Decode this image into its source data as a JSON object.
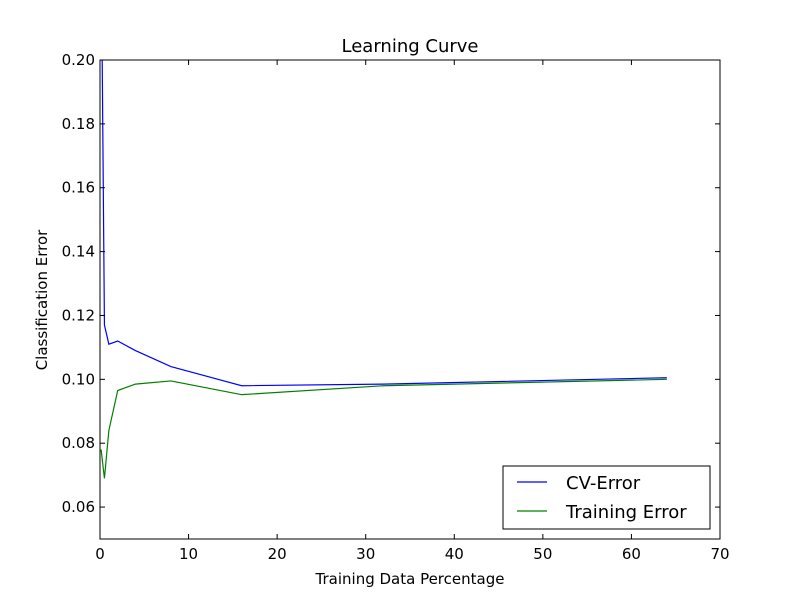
{
  "chart_data": {
    "type": "line",
    "title": "Learning Curve",
    "xlabel": "Training Data Percentage",
    "ylabel": "Classification Error",
    "xlim": [
      0,
      70
    ],
    "ylim": [
      0.05,
      0.2
    ],
    "x_ticks": [
      0,
      10,
      20,
      30,
      40,
      50,
      60,
      70
    ],
    "y_ticks": [
      0.06,
      0.08,
      0.1,
      0.12,
      0.14,
      0.16,
      0.18,
      0.2
    ],
    "x_tick_labels": [
      "0",
      "10",
      "20",
      "30",
      "40",
      "50",
      "60",
      "70"
    ],
    "y_tick_labels": [
      "0.06",
      "0.08",
      "0.10",
      "0.12",
      "0.14",
      "0.16",
      "0.18",
      "0.20"
    ],
    "grid": false,
    "legend_position": "lower-right",
    "series": [
      {
        "name": "CV-Error",
        "color": "#0000ff",
        "x": [
          0.125,
          0.25,
          0.5,
          1,
          2,
          4,
          8,
          16,
          32,
          64
        ],
        "y": [
          0.2,
          0.2,
          0.117,
          0.111,
          0.112,
          0.109,
          0.104,
          0.098,
          0.0985,
          0.1005
        ]
      },
      {
        "name": "Training Error",
        "color": "#008000",
        "x": [
          0.125,
          0.25,
          0.5,
          1,
          2,
          4,
          8,
          16,
          32,
          64
        ],
        "y": [
          0.078,
          0.075,
          0.069,
          0.084,
          0.0965,
          0.0985,
          0.0995,
          0.0952,
          0.098,
          0.1
        ]
      }
    ]
  }
}
